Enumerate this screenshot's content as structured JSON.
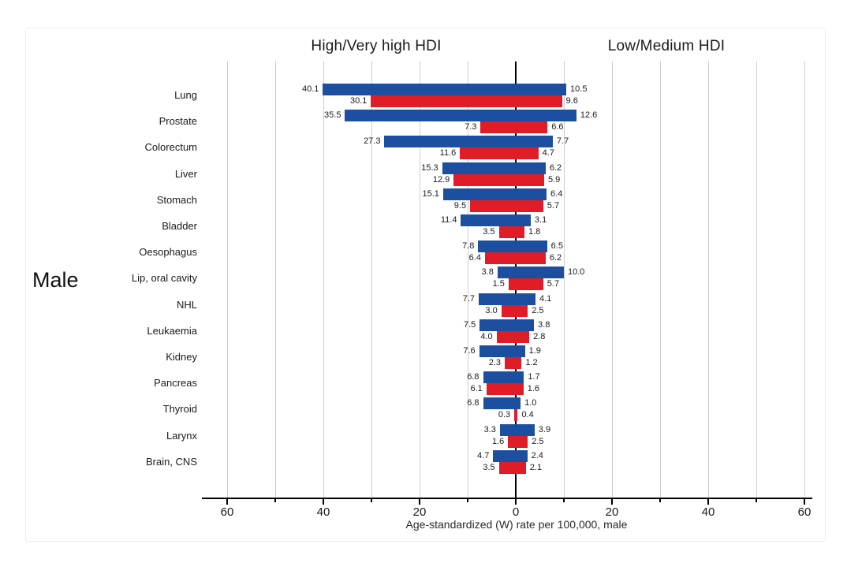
{
  "chart_data": {
    "type": "bar",
    "subtype": "diverging-horizontal-paired",
    "left_header": "High/Very high HDI",
    "right_header": "Low/Medium HDI",
    "side_label": "Male",
    "xlabel": "Age-standardized (W) rate per 100,000, male",
    "xlim": [
      -65,
      65
    ],
    "x_major_ticks": [
      -60,
      -40,
      -20,
      0,
      20,
      40,
      60
    ],
    "x_major_tick_labels": [
      "60",
      "40",
      "20",
      "0",
      "20",
      "40",
      "60"
    ],
    "x_minor_ticks": [
      -50,
      -30,
      -10,
      10,
      30,
      50
    ],
    "gridlines": [
      -60,
      -50,
      -40,
      -30,
      -20,
      -10,
      10,
      20,
      30,
      40,
      50,
      60
    ],
    "grid": true,
    "legend": "none",
    "colors": {
      "blue_bar": "#1C4FA0",
      "red_bar": "#E01D26",
      "gridline": "#cdcdcd",
      "axis": "#000000"
    },
    "categories": [
      "Lung",
      "Prostate",
      "Colorectum",
      "Liver",
      "Stomach",
      "Bladder",
      "Oesophagus",
      "Lip, oral cavity",
      "NHL",
      "Leukaemia",
      "Kidney",
      "Pancreas",
      "Thyroid",
      "Larynx",
      "Brain, CNS"
    ],
    "series": [
      {
        "name": "left-blue-top-bar",
        "side": "left",
        "color": "#1C4FA0",
        "values": [
          40.1,
          35.5,
          27.3,
          15.3,
          15.1,
          11.4,
          7.8,
          3.8,
          7.7,
          7.5,
          7.6,
          6.8,
          6.8,
          3.3,
          4.7
        ]
      },
      {
        "name": "left-red-bottom-bar",
        "side": "left",
        "color": "#E01D26",
        "values": [
          30.1,
          7.3,
          11.6,
          12.9,
          9.5,
          3.5,
          6.4,
          1.5,
          3.0,
          4.0,
          2.3,
          6.1,
          0.3,
          1.6,
          3.5
        ]
      },
      {
        "name": "right-blue-top-bar",
        "side": "right",
        "color": "#1C4FA0",
        "values": [
          10.5,
          12.6,
          7.7,
          6.2,
          6.4,
          3.1,
          6.5,
          10.0,
          4.1,
          3.8,
          1.9,
          1.7,
          1.0,
          3.9,
          2.4
        ]
      },
      {
        "name": "right-red-bottom-bar",
        "side": "right",
        "color": "#E01D26",
        "values": [
          9.6,
          6.6,
          4.7,
          5.9,
          5.7,
          1.8,
          6.2,
          5.7,
          2.5,
          2.8,
          1.2,
          1.6,
          0.4,
          2.5,
          2.1
        ]
      }
    ]
  }
}
